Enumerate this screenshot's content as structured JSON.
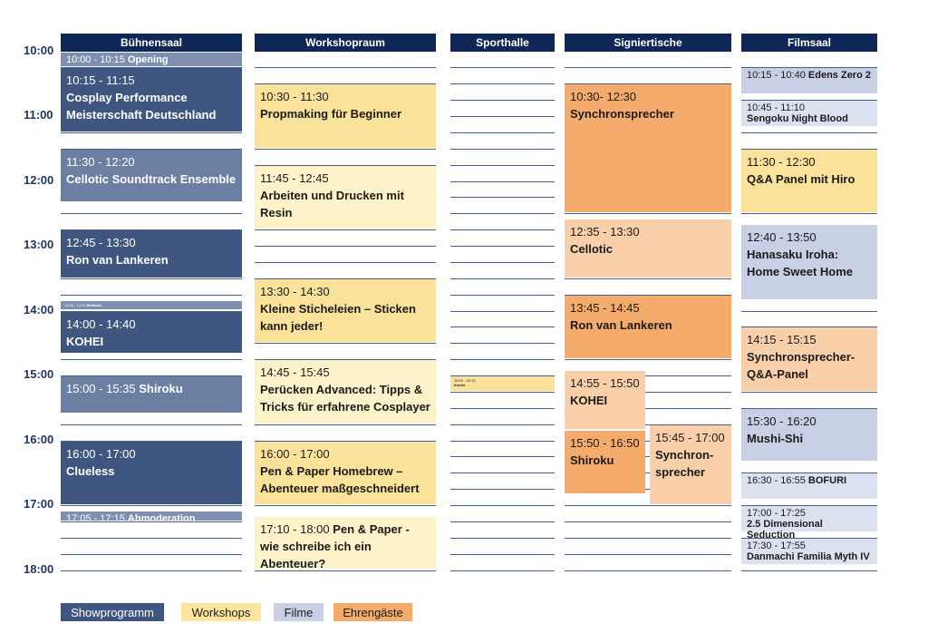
{
  "times": [
    "10:00",
    "11:00",
    "12:00",
    "13:00",
    "14:00",
    "15:00",
    "16:00",
    "17:00",
    "18:00"
  ],
  "columns": [
    "Bühnensaal",
    "Workshopraum",
    "Sporthalle",
    "Signiertische",
    "Filmsaal"
  ],
  "events": {
    "buehne": [
      {
        "time": "10:00 - 10:15",
        "name": "Opening"
      },
      {
        "time": "10:15 - 11:15",
        "name": "Cosplay Performance Meisterschaft Deutschland"
      },
      {
        "time": "11:30 - 12:20",
        "name": "Cellotic Soundtrack Ensemble"
      },
      {
        "time": "12:45 - 13:30",
        "name": "Ron van Lankeren"
      },
      {
        "time": "13:50 - 14:00",
        "name": "Reklame"
      },
      {
        "time": "14:00 - 14:40",
        "name": "KOHEI"
      },
      {
        "time": "15:00 - 15:35",
        "name": "Shiroku"
      },
      {
        "time": "16:00 - 17:00",
        "name": "Clueless"
      },
      {
        "time": "17:05 - 17:15",
        "name": "Abmoderation"
      }
    ],
    "workshop": [
      {
        "time": "10:30 - 11:30",
        "name": "Propmaking für Beginner"
      },
      {
        "time": "11:45 - 12:45",
        "name": "Arbeiten und Drucken mit Resin"
      },
      {
        "time": "13:30 - 14:30",
        "name": "Kleine Sticheleien – Sticken kann jeder!"
      },
      {
        "time": "14:45 - 15:45",
        "name": "Perücken Advanced:  Tipps & Tricks für erfahrene Cosplayer"
      },
      {
        "time": "16:00 - 17:00",
        "name": "Pen & Paper Homebrew – Abenteuer maßgeschneidert"
      },
      {
        "time": "17:10 - 18:00",
        "name": "Pen & Paper - wie schreibe ich ein Abenteuer?"
      }
    ],
    "sport": [
      {
        "time": "15:00 - 15:15",
        "name": "Kendo"
      }
    ],
    "signier": [
      {
        "time": "10:30- 12:30",
        "name": "Synchronsprecher"
      },
      {
        "time": "12:35 - 13:30",
        "name": "Cellotic"
      },
      {
        "time": "13:45 - 14:45",
        "name": "Ron van Lankeren"
      },
      {
        "time": "14:55 - 15:50",
        "name": "KOHEI"
      },
      {
        "time": "15:50 - 16:50",
        "name": "Shiroku"
      },
      {
        "time": "15:45 - 17:00",
        "name": "Synchron-sprecher"
      }
    ],
    "film": [
      {
        "time": "10:15 - 10:40",
        "name": "Edens Zero 2"
      },
      {
        "time": "10:45 - 11:10",
        "name": "Sengoku Night Blood"
      },
      {
        "time": "11:30 - 12:30",
        "name": "Q&A Panel mit Hiro"
      },
      {
        "time": "12:40 - 13:50",
        "name": "Hanasaku Iroha: Home Sweet Home"
      },
      {
        "time": "14:15 - 15:15",
        "name": "Synchronsprecher-Q&A-Panel"
      },
      {
        "time": "15:30 - 16:20",
        "name": "Mushi-Shi"
      },
      {
        "time": "16:30 - 16:55",
        "name": "BOFURI"
      },
      {
        "time": "17:00 - 17:25",
        "name": "2.5 Dimensional Seduction"
      },
      {
        "time": "17:30 - 17:55",
        "name": "Danmachi Familia Myth IV"
      }
    ]
  },
  "legend": [
    "Showprogramm",
    "Workshops",
    "Filme",
    "Ehrengäste"
  ]
}
